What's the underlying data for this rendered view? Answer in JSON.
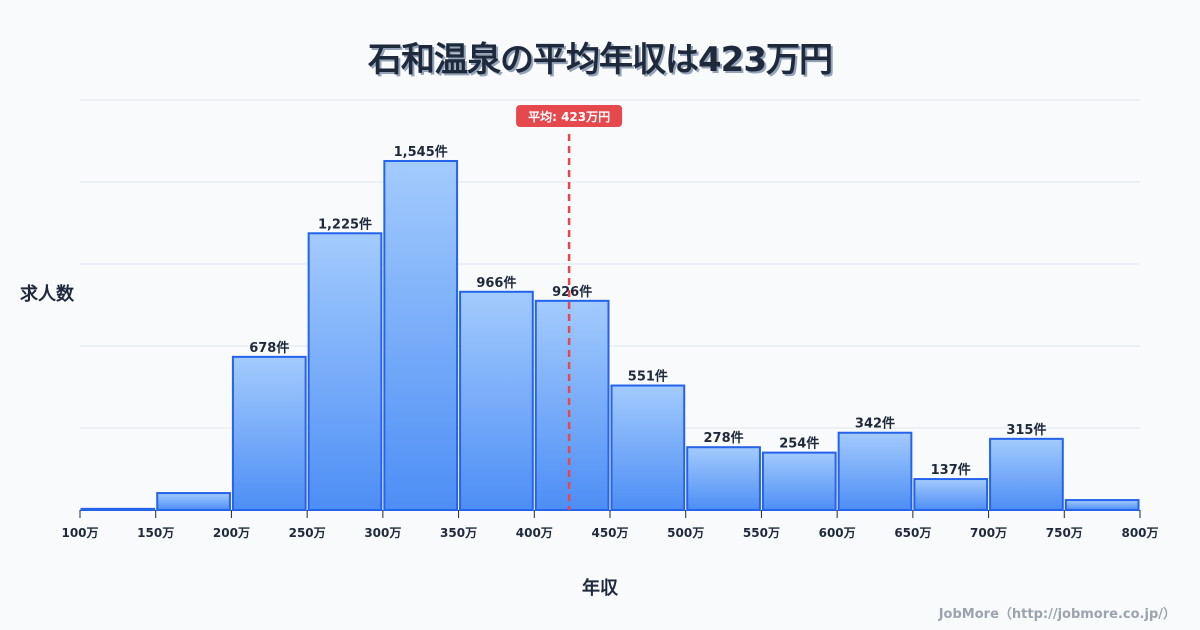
{
  "title": "石和温泉の平均年収は423万円",
  "y_axis_label": "求人数",
  "x_axis_label": "年収",
  "credit": "JobMore（http://jobmore.co.jp/）",
  "average_badge": "平均: 423万円",
  "colors": {
    "bar_top": "#a3cbfd",
    "bar_bottom": "#4d8ef5",
    "bar_border": "#2563eb",
    "average_line": "#e5484d",
    "grid": "#e2e8f0",
    "text": "#1e293b"
  },
  "chart_data": {
    "type": "bar",
    "title": "石和温泉の平均年収は423万円",
    "xlabel": "年収",
    "ylabel": "求人数",
    "categories": [
      "100-150万",
      "150-200万",
      "200-250万",
      "250-300万",
      "300-350万",
      "350-400万",
      "400-450万",
      "450-500万",
      "500-550万",
      "550-600万",
      "600-650万",
      "650-700万",
      "700-750万",
      "750-800万"
    ],
    "tick_labels": [
      "100万",
      "150万",
      "200万",
      "250万",
      "300万",
      "350万",
      "400万",
      "450万",
      "500万",
      "550万",
      "600万",
      "650万",
      "700万",
      "750万",
      "800万"
    ],
    "values": [
      5,
      75,
      678,
      1225,
      1545,
      966,
      926,
      551,
      278,
      254,
      342,
      137,
      315,
      44
    ],
    "value_labels": [
      "",
      "",
      "678件",
      "1,225件",
      "1,545件",
      "966件",
      "926件",
      "551件",
      "278件",
      "254件",
      "342件",
      "137件",
      "315件",
      ""
    ],
    "average": 423,
    "ylim": [
      0,
      1815
    ],
    "grid": true,
    "legend": null
  }
}
